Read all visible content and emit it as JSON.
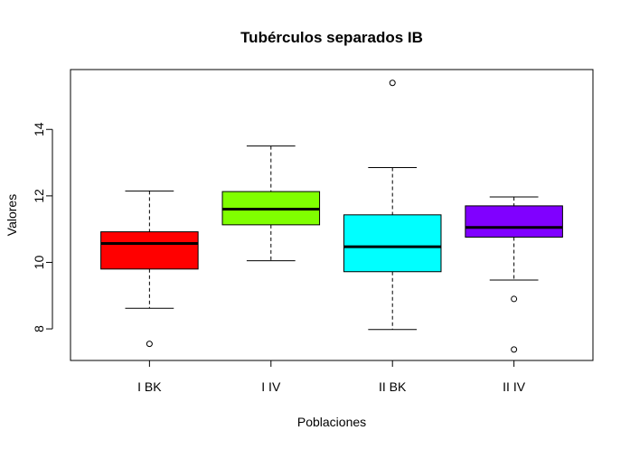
{
  "chart_data": {
    "type": "box",
    "title": "Tubérculos separados IB",
    "xlabel": "Poblaciones",
    "ylabel": "Valores",
    "ylim": [
      7.05,
      15.8
    ],
    "yticks": [
      8,
      10,
      12,
      14
    ],
    "ytick_labels": [
      "8",
      "10",
      "12",
      "14"
    ],
    "categories": [
      "I BK",
      "I IV",
      "II BK",
      "II IV"
    ],
    "boxes": [
      {
        "label": "I BK",
        "color": "#FF0000",
        "whisker_low": 8.62,
        "q1": 9.8,
        "median": 10.57,
        "q3": 10.92,
        "whisker_high": 12.15,
        "outliers": [
          7.55
        ]
      },
      {
        "label": "I IV",
        "color": "#80FF00",
        "whisker_low": 10.05,
        "q1": 11.13,
        "median": 11.6,
        "q3": 12.13,
        "whisker_high": 13.5,
        "outliers": []
      },
      {
        "label": "II BK",
        "color": "#00FFFF",
        "whisker_low": 7.98,
        "q1": 9.72,
        "median": 10.47,
        "q3": 11.43,
        "whisker_high": 12.85,
        "outliers": [
          15.4
        ]
      },
      {
        "label": "II IV",
        "color": "#8000FF",
        "whisker_low": 9.47,
        "q1": 10.76,
        "median": 11.05,
        "q3": 11.7,
        "whisker_high": 11.97,
        "outliers": [
          8.9,
          7.38
        ]
      }
    ]
  }
}
